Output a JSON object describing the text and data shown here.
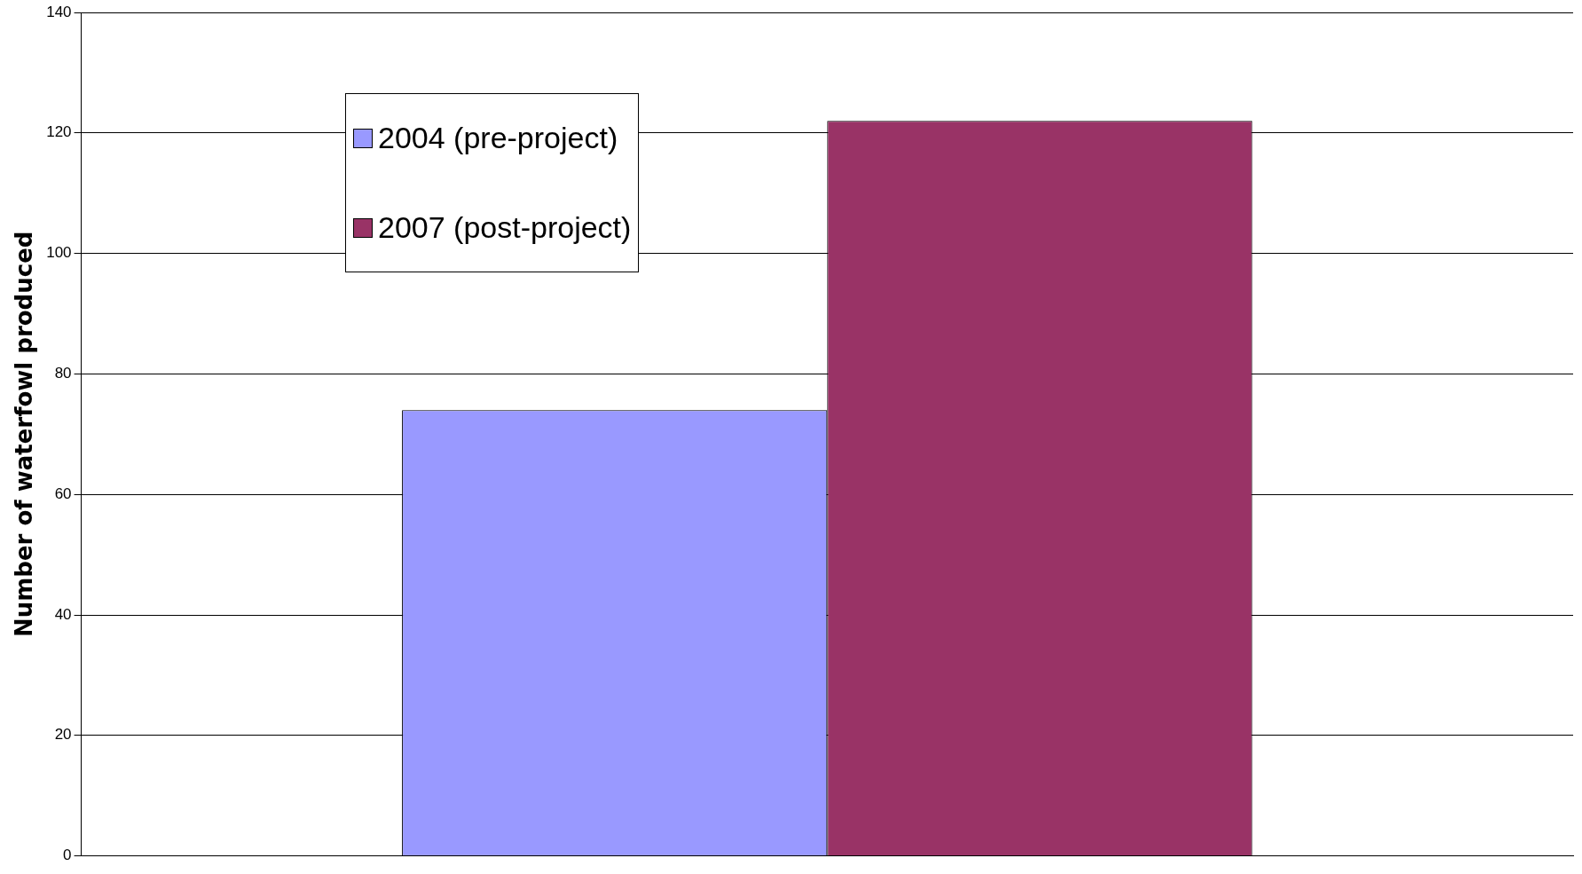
{
  "chart_data": {
    "type": "bar",
    "ylabel": "Number of waterfowl produced",
    "categories": [
      null
    ],
    "series": [
      {
        "name": "2004 (pre-project)",
        "color": "#9999ff",
        "values": [
          74
        ]
      },
      {
        "name": "2007 (post-project)",
        "color": "#993366",
        "values": [
          122
        ]
      }
    ],
    "ylim": [
      0,
      140
    ],
    "yticks": [
      0,
      20,
      40,
      60,
      80,
      100,
      120,
      140
    ],
    "grid": "y",
    "legend": "top left"
  }
}
